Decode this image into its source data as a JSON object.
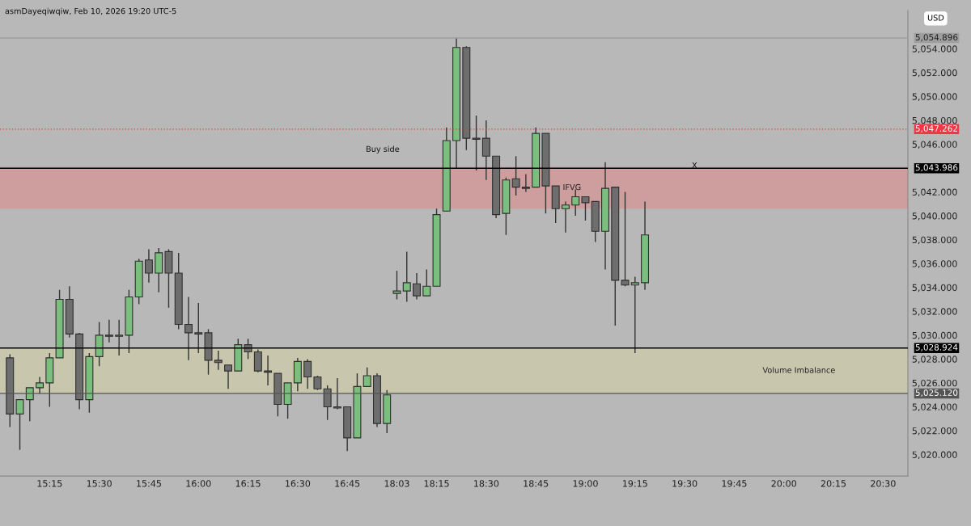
{
  "chart_data": {
    "type": "candlestick",
    "title": "asmDayeqiwqiw, Feb 10, 2026 19:20 UTC-5",
    "categories": [
      null,
      null,
      null,
      null,
      "15:15",
      null,
      null,
      null,
      null,
      "15:30",
      null,
      null,
      null,
      null,
      "15:45",
      null,
      null,
      null,
      null,
      "16:00",
      null,
      null,
      null,
      null,
      "16:15",
      null,
      null,
      null,
      null,
      "16:30",
      null,
      null,
      null,
      null,
      "16:45",
      null,
      null,
      null,
      null,
      "18:03",
      null,
      null,
      null,
      "18:15",
      null,
      null,
      null,
      null,
      "18:30",
      null,
      null,
      null,
      null,
      "18:45",
      null,
      null,
      null,
      null,
      "19:00",
      null,
      null,
      null,
      null,
      "19:15",
      null,
      null,
      null,
      null,
      "19:30",
      null,
      null,
      null,
      null,
      "19:45",
      null,
      null,
      null,
      null,
      "20:00",
      null,
      null,
      null,
      null,
      "20:15",
      null,
      null,
      null,
      null,
      "20:30",
      null,
      null
    ],
    "ohlc": [
      [
        5028.1,
        5028.4,
        5022.3,
        5023.4
      ],
      [
        5023.4,
        5024.6,
        5020.4,
        5024.6
      ],
      [
        5024.6,
        5025.6,
        5022.8,
        5025.6
      ],
      [
        5025.6,
        5026.5,
        5025.1,
        5026.0
      ],
      [
        5026.0,
        5028.5,
        5024.0,
        5028.1
      ],
      [
        5028.1,
        5033.8,
        5028.1,
        5033.0
      ],
      [
        5033.0,
        5034.1,
        5029.8,
        5030.1
      ],
      [
        5030.1,
        5030.2,
        5023.8,
        5024.6
      ],
      [
        5024.6,
        5028.5,
        5023.5,
        5028.2
      ],
      [
        5028.2,
        5031.1,
        5027.4,
        5030.0
      ],
      [
        5030.0,
        5031.3,
        5029.4,
        5029.9
      ],
      [
        5029.9,
        5031.3,
        5028.3,
        5030.0
      ],
      [
        5030.0,
        5033.8,
        5028.5,
        5033.2
      ],
      [
        5033.2,
        5036.4,
        5032.6,
        5036.2
      ],
      [
        5036.3,
        5037.2,
        5034.4,
        5035.2
      ],
      [
        5035.2,
        5037.3,
        5033.6,
        5036.9
      ],
      [
        5037.0,
        5037.2,
        5032.3,
        5035.2
      ],
      [
        5035.2,
        5036.9,
        5030.5,
        5030.9
      ],
      [
        5030.9,
        5033.2,
        5027.9,
        5030.2
      ],
      [
        5030.1,
        5032.7,
        5028.5,
        5030.2
      ],
      [
        5030.2,
        5030.5,
        5026.7,
        5027.9
      ],
      [
        5027.9,
        5028.7,
        5027.1,
        5027.7
      ],
      [
        5027.5,
        5027.5,
        5025.5,
        5027.0
      ],
      [
        5027.0,
        5029.7,
        5027.0,
        5029.2
      ],
      [
        5029.2,
        5029.7,
        5028.0,
        5028.6
      ],
      [
        5028.6,
        5028.8,
        5026.9,
        5027.0
      ],
      [
        5027.0,
        5028.3,
        5025.8,
        5026.9
      ],
      [
        5026.8,
        5026.8,
        5023.2,
        5024.2
      ],
      [
        5024.2,
        5026.0,
        5023.0,
        5026.0
      ],
      [
        5026.0,
        5028.1,
        5025.3,
        5027.8
      ],
      [
        5027.8,
        5028.0,
        5025.5,
        5026.5
      ],
      [
        5026.5,
        5026.6,
        5025.4,
        5025.5
      ],
      [
        5025.5,
        5025.8,
        5022.9,
        5024.0
      ],
      [
        5024.0,
        5026.4,
        5023.8,
        5023.9
      ],
      [
        5024.0,
        5024.0,
        5020.3,
        5021.4
      ],
      [
        5021.4,
        5026.8,
        5021.4,
        5025.7
      ],
      [
        5025.7,
        5027.3,
        5025.7,
        5026.6
      ],
      [
        5026.6,
        5026.8,
        5022.3,
        5022.6
      ],
      [
        5022.6,
        5025.4,
        5021.8,
        5025.0
      ],
      [
        5033.5,
        5035.4,
        5033.0,
        5033.7
      ],
      [
        5033.7,
        5037.0,
        5032.8,
        5034.4
      ],
      [
        5034.3,
        5035.2,
        5033.0,
        5033.3
      ],
      [
        5033.3,
        5035.5,
        5033.3,
        5034.1
      ],
      [
        5034.1,
        5040.6,
        5034.1,
        5040.1
      ],
      [
        5040.4,
        5047.4,
        5040.4,
        5046.3
      ],
      [
        5046.3,
        5054.9,
        5044.0,
        5054.1
      ],
      [
        5054.1,
        5054.2,
        5045.5,
        5046.5
      ],
      [
        5046.5,
        5048.4,
        5043.8,
        5046.4
      ],
      [
        5046.5,
        5048.0,
        5043.0,
        5045.0
      ],
      [
        5045.0,
        5045.0,
        5039.8,
        5040.1
      ],
      [
        5040.2,
        5043.2,
        5038.4,
        5043.0
      ],
      [
        5043.1,
        5045.0,
        5041.7,
        5042.4
      ],
      [
        5042.4,
        5043.5,
        5042.0,
        5042.3
      ],
      [
        5042.4,
        5047.4,
        5042.4,
        5046.9
      ],
      [
        5046.9,
        5046.9,
        5040.2,
        5042.5
      ],
      [
        5042.5,
        5042.5,
        5039.4,
        5040.6
      ],
      [
        5040.6,
        5041.2,
        5038.6,
        5040.9
      ],
      [
        5040.9,
        5042.2,
        5040.0,
        5041.6
      ],
      [
        5041.6,
        5041.6,
        5039.6,
        5041.1
      ],
      [
        5041.2,
        5041.2,
        5037.8,
        5038.7
      ],
      [
        5038.7,
        5044.5,
        5035.5,
        5042.3
      ],
      [
        5042.4,
        5042.4,
        5030.8,
        5034.6
      ],
      [
        5034.6,
        5042.0,
        5034.1,
        5034.2
      ],
      [
        5034.2,
        5034.9,
        5028.5,
        5034.4
      ],
      [
        5034.4,
        5041.2,
        5033.8,
        5038.4
      ],
      null,
      null,
      null,
      null,
      null,
      null,
      null,
      null,
      null,
      null,
      null,
      null,
      null,
      null,
      null,
      null,
      null,
      null,
      null,
      null,
      null,
      null,
      null,
      null,
      null,
      null
    ],
    "ylim": [
      5018.2,
      5057.2
    ],
    "yticks": [
      {
        "value": 5020,
        "label": "5,020.000"
      },
      {
        "value": 5022,
        "label": "5,022.000"
      },
      {
        "value": 5024,
        "label": "5,024.000"
      },
      {
        "value": 5026,
        "label": "5,026.000"
      },
      {
        "value": 5028,
        "label": "5,028.000"
      },
      {
        "value": 5030,
        "label": "5,030.000"
      },
      {
        "value": 5032,
        "label": "5,032.000"
      },
      {
        "value": 5034,
        "label": "5,034.000"
      },
      {
        "value": 5036,
        "label": "5,036.000"
      },
      {
        "value": 5038,
        "label": "5,038.000"
      },
      {
        "value": 5040,
        "label": "5,040.000"
      },
      {
        "value": 5042,
        "label": "5,042.000"
      },
      {
        "value": 5044,
        "label": null
      },
      {
        "value": 5046,
        "label": "5,046.000"
      },
      {
        "value": 5048,
        "label": "5,048.000"
      },
      {
        "value": 5050,
        "label": "5,050.000"
      },
      {
        "value": 5052,
        "label": "5,052.000"
      },
      {
        "value": 5054,
        "label": "5,054.000"
      }
    ],
    "ref_lines": [
      {
        "axis": "y",
        "value": 5054.896,
        "label": "5,054.896",
        "color": "#9e9e9e",
        "line_style": "solid"
      },
      {
        "axis": "y",
        "value": 5047.262,
        "label": "5,047.262",
        "color": "#f23645",
        "line_style": "dotted"
      },
      {
        "axis": "y",
        "value": 5043.986,
        "label": "5,043.986",
        "color": "#000000",
        "line_style": "solid"
      },
      {
        "axis": "y",
        "value": 5028.924,
        "label": "5,028.924",
        "color": "#000000",
        "line_style": "solid"
      },
      {
        "axis": "y",
        "value": 5025.12,
        "label": "5,025.120",
        "color": "#555555",
        "line_style": "solid"
      }
    ],
    "bands": [
      {
        "axis": "y",
        "from": 5040.6,
        "to": 5044.1,
        "label": "IFVG",
        "color": "#e08888"
      },
      {
        "axis": "y",
        "from": 5025.12,
        "to": 5028.924,
        "label": "Volume Imbalance",
        "color": "#d6d2a2"
      }
    ],
    "annotations": [
      "USD",
      "Buy side",
      "X"
    ]
  }
}
